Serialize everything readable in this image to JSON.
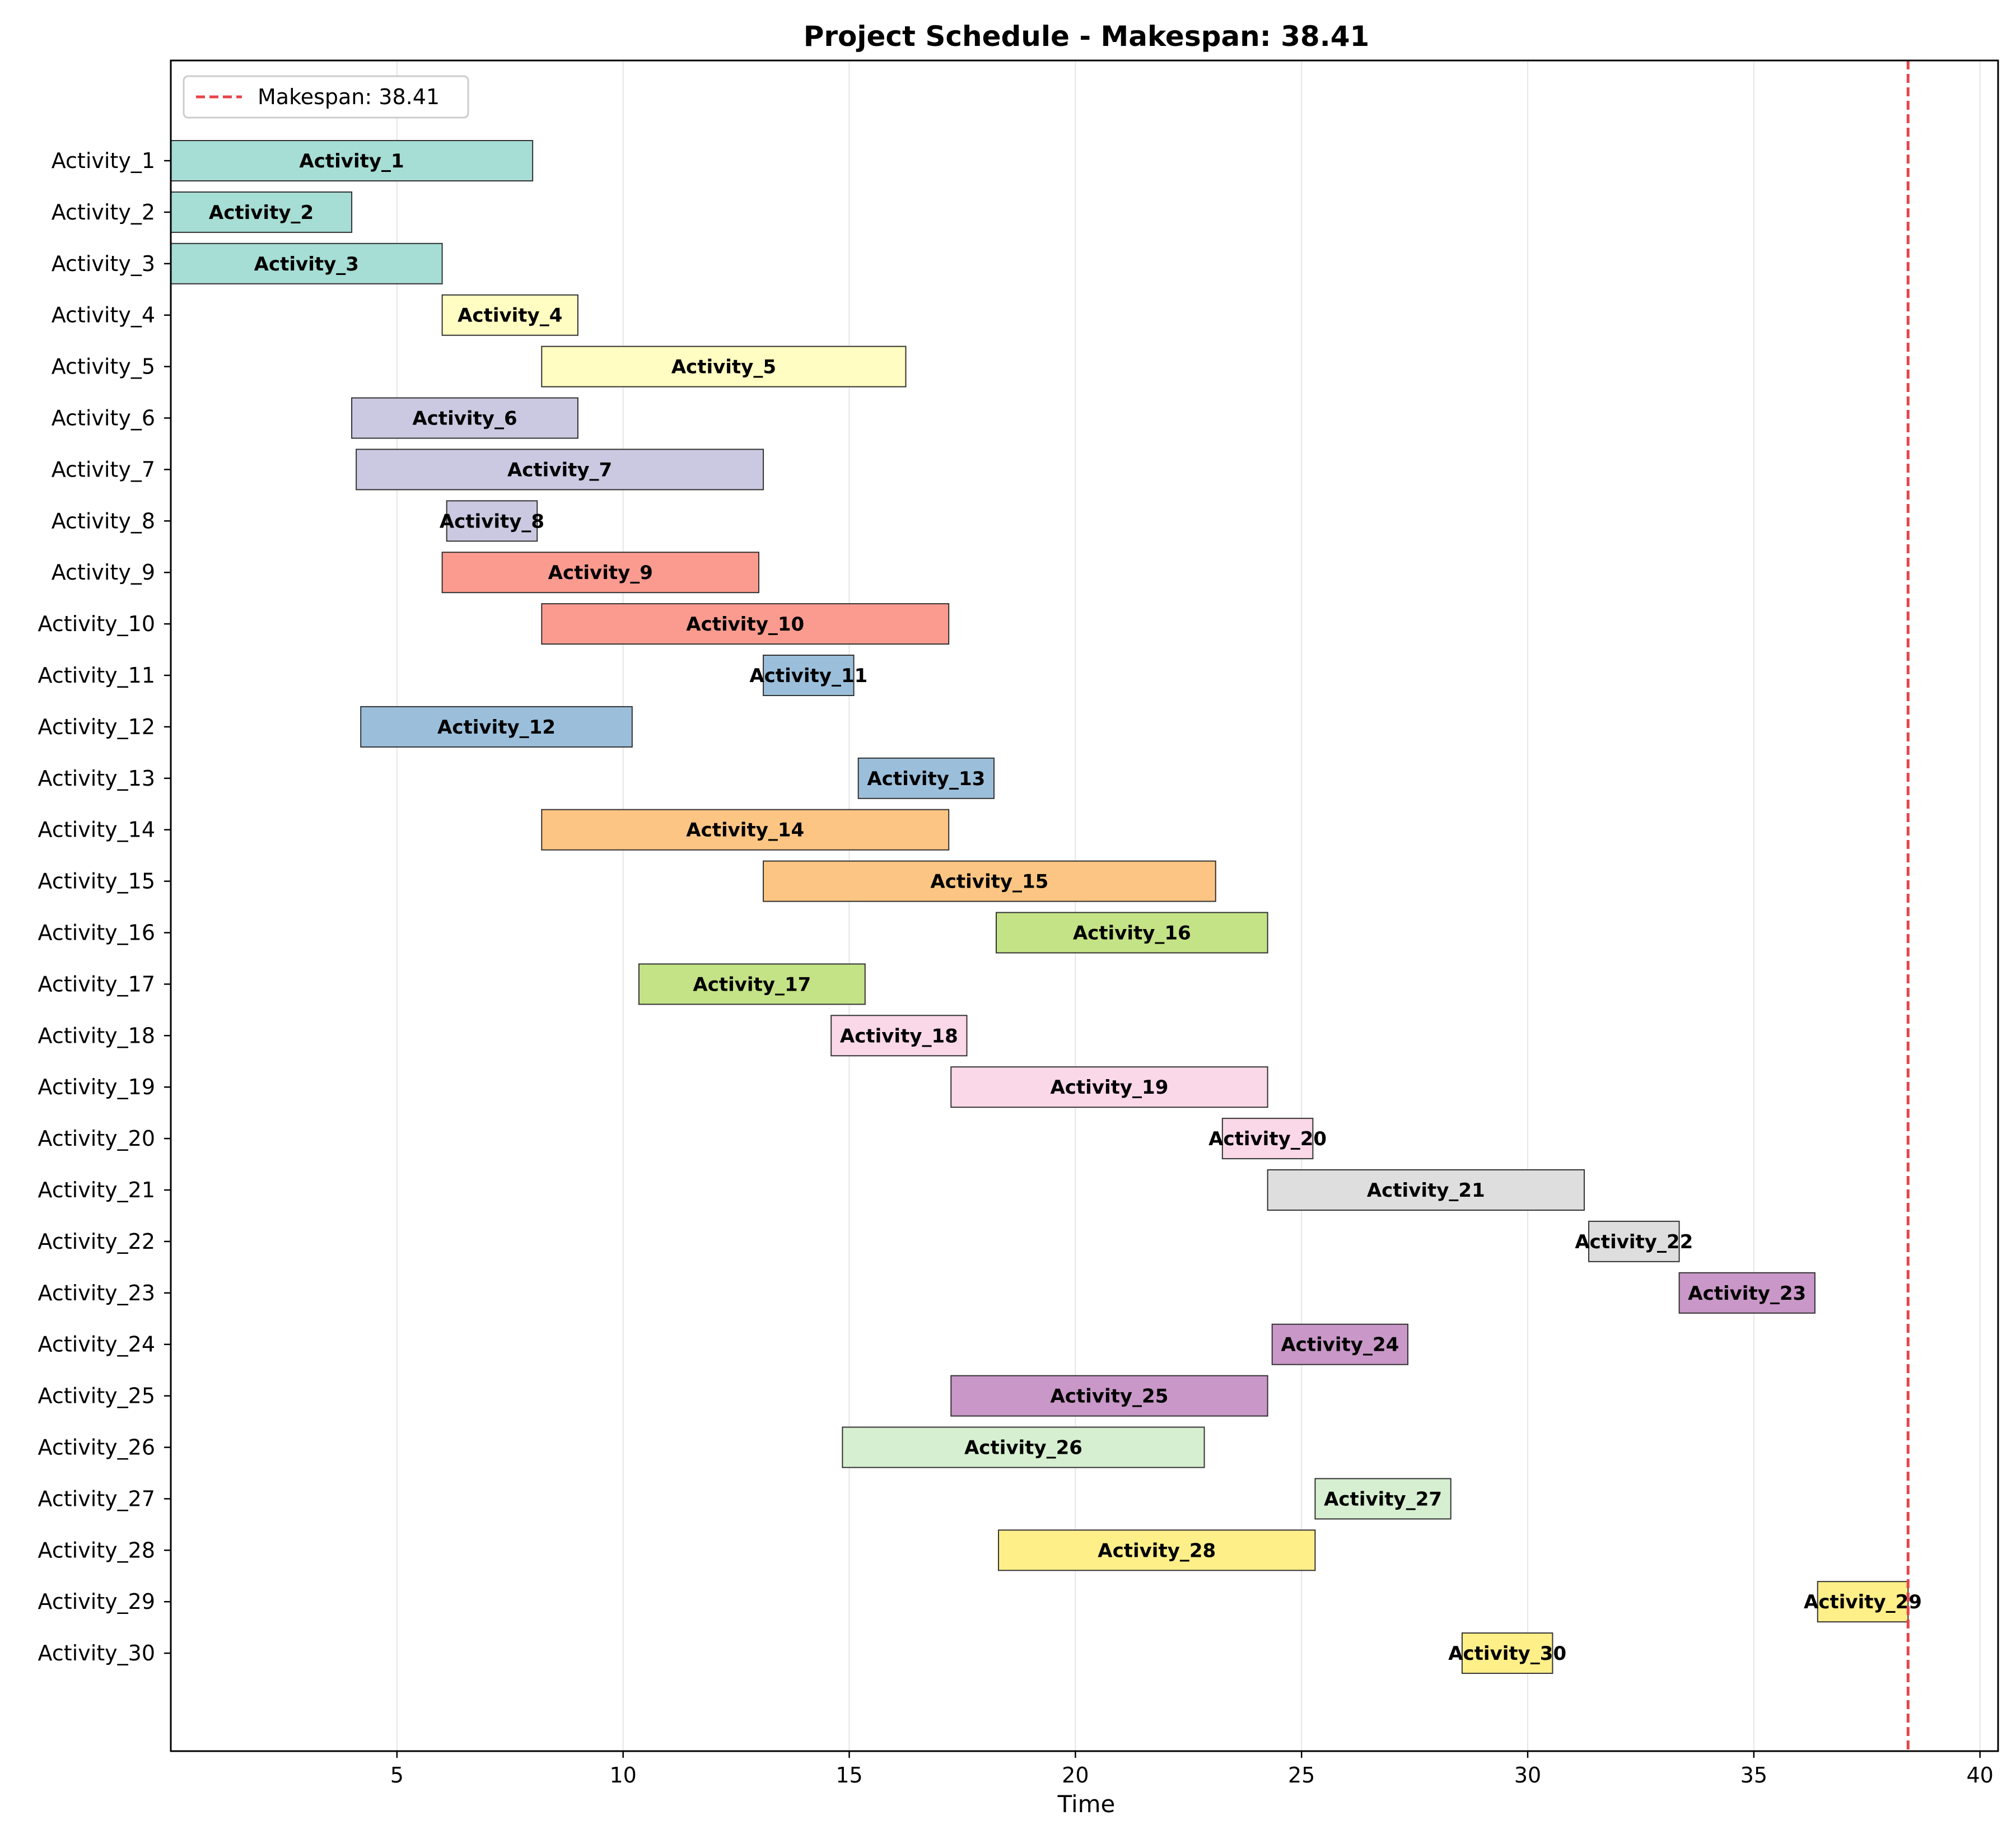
{
  "chart_data": {
    "type": "gantt",
    "title": "Project Schedule - Makespan: 38.41",
    "xlabel": "Time",
    "xlim": [
      0,
      40.4
    ],
    "xticks": [
      5,
      10,
      15,
      20,
      25,
      30,
      35,
      40
    ],
    "grid": "vertical",
    "makespan": 38.41,
    "legend": {
      "position": "top-left",
      "label": "Makespan: 38.41",
      "color": "#e8434a"
    },
    "activities": [
      {
        "name": "Activity_1",
        "start": 0.0,
        "end": 8.0,
        "color": "#a6ddd4"
      },
      {
        "name": "Activity_2",
        "start": 0.0,
        "end": 4.0,
        "color": "#a6ddd4"
      },
      {
        "name": "Activity_3",
        "start": 0.0,
        "end": 6.0,
        "color": "#a6ddd4"
      },
      {
        "name": "Activity_4",
        "start": 6.0,
        "end": 9.0,
        "color": "#fffdc1"
      },
      {
        "name": "Activity_5",
        "start": 8.2,
        "end": 16.25,
        "color": "#fffdc1"
      },
      {
        "name": "Activity_6",
        "start": 4.0,
        "end": 9.0,
        "color": "#cbc8e1"
      },
      {
        "name": "Activity_7",
        "start": 4.1,
        "end": 13.1,
        "color": "#cbc8e1"
      },
      {
        "name": "Activity_8",
        "start": 6.1,
        "end": 8.1,
        "color": "#cbc8e1"
      },
      {
        "name": "Activity_9",
        "start": 6.0,
        "end": 13.0,
        "color": "#fb9b8f"
      },
      {
        "name": "Activity_10",
        "start": 8.2,
        "end": 17.2,
        "color": "#fb9b8f"
      },
      {
        "name": "Activity_11",
        "start": 13.1,
        "end": 15.1,
        "color": "#9bbfdb"
      },
      {
        "name": "Activity_12",
        "start": 4.2,
        "end": 10.2,
        "color": "#9bbfdb"
      },
      {
        "name": "Activity_13",
        "start": 15.2,
        "end": 18.2,
        "color": "#9bbfdb"
      },
      {
        "name": "Activity_14",
        "start": 8.2,
        "end": 17.2,
        "color": "#fdc583"
      },
      {
        "name": "Activity_15",
        "start": 13.1,
        "end": 23.1,
        "color": "#fdc583"
      },
      {
        "name": "Activity_16",
        "start": 18.25,
        "end": 24.25,
        "color": "#c4e386"
      },
      {
        "name": "Activity_17",
        "start": 10.35,
        "end": 15.35,
        "color": "#c4e386"
      },
      {
        "name": "Activity_18",
        "start": 14.6,
        "end": 17.6,
        "color": "#fad8e8"
      },
      {
        "name": "Activity_19",
        "start": 17.25,
        "end": 24.25,
        "color": "#fad8e8"
      },
      {
        "name": "Activity_20",
        "start": 23.25,
        "end": 25.25,
        "color": "#fad8e8"
      },
      {
        "name": "Activity_21",
        "start": 24.25,
        "end": 31.25,
        "color": "#dedede"
      },
      {
        "name": "Activity_22",
        "start": 31.35,
        "end": 33.35,
        "color": "#dedede"
      },
      {
        "name": "Activity_23",
        "start": 33.35,
        "end": 36.35,
        "color": "#c997c8"
      },
      {
        "name": "Activity_24",
        "start": 24.35,
        "end": 27.35,
        "color": "#c997c8"
      },
      {
        "name": "Activity_25",
        "start": 17.25,
        "end": 24.25,
        "color": "#c997c8"
      },
      {
        "name": "Activity_26",
        "start": 14.85,
        "end": 22.85,
        "color": "#d6efd0"
      },
      {
        "name": "Activity_27",
        "start": 25.3,
        "end": 28.3,
        "color": "#d6efd0"
      },
      {
        "name": "Activity_28",
        "start": 18.3,
        "end": 25.3,
        "color": "#ffef89"
      },
      {
        "name": "Activity_29",
        "start": 36.41,
        "end": 38.41,
        "color": "#ffef89"
      },
      {
        "name": "Activity_30",
        "start": 28.55,
        "end": 30.55,
        "color": "#ffef89"
      }
    ]
  }
}
